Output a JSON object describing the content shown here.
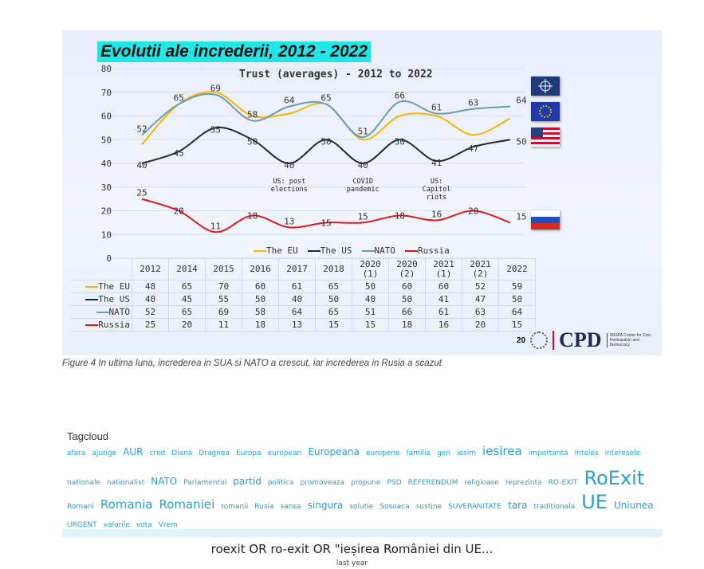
{
  "figure": {
    "title": "Evolutii ale increderii, 2012 - 2022",
    "caption": "Figure 4 In ultima luna, increderea in SUA si NATO a crescut, iar increderea in Rusia a scazut",
    "page_number": "20",
    "logo": "CPD",
    "logo_sub": "SNSPA Center for Civic Participation and Democracy"
  },
  "chart_data": {
    "type": "line",
    "title": "Trust (averages) - 2012 to 2022",
    "categories": [
      "2012",
      "2014",
      "2015",
      "2016",
      "2017",
      "2018",
      "2020 (1)",
      "2020 (2)",
      "2021 (1)",
      "2021 (2)",
      "2022"
    ],
    "ylim": [
      0,
      80
    ],
    "yticks": [
      "0",
      "10",
      "20",
      "30",
      "40",
      "50",
      "60",
      "70",
      "80"
    ],
    "legend_position": "bottom",
    "series": [
      {
        "name": "The EU",
        "color": "#f2b705",
        "values": [
          48,
          65,
          70,
          60,
          61,
          65,
          50,
          60,
          60,
          52,
          59
        ]
      },
      {
        "name": "The US",
        "color": "#1b2a33",
        "values": [
          40,
          45,
          55,
          50,
          40,
          50,
          40,
          50,
          41,
          47,
          50
        ]
      },
      {
        "name": "NATO",
        "color": "#6b9bb3",
        "values": [
          52,
          65,
          69,
          58,
          64,
          65,
          51,
          66,
          61,
          63,
          64
        ]
      },
      {
        "name": "Russia",
        "color": "#e0191e",
        "values": [
          25,
          20,
          11,
          18,
          13,
          15,
          15,
          18,
          16,
          20,
          15
        ]
      }
    ],
    "annotations": [
      {
        "text": "US: post elections",
        "x": "2017"
      },
      {
        "text": "COVID pandemic",
        "x": "2020 (1)"
      },
      {
        "text": "US: Capitol riots",
        "x": "2021 (1)"
      }
    ]
  },
  "tagcloud": {
    "heading": "Tagcloud",
    "tags": [
      {
        "t": "afara",
        "s": 1
      },
      {
        "t": "ajunge",
        "s": 1
      },
      {
        "t": "AUR",
        "s": 2
      },
      {
        "t": "cred",
        "s": 1
      },
      {
        "t": "Diana",
        "s": 1
      },
      {
        "t": "Dragnea",
        "s": 1
      },
      {
        "t": "Europa",
        "s": 1
      },
      {
        "t": "european",
        "s": 1
      },
      {
        "t": "Europeana",
        "s": 2
      },
      {
        "t": "europene",
        "s": 1
      },
      {
        "t": "familia",
        "s": 1
      },
      {
        "t": "gen",
        "s": 1
      },
      {
        "t": "iesim",
        "s": 1
      },
      {
        "t": "iesirea",
        "s": 3
      },
      {
        "t": "importanta",
        "s": 1
      },
      {
        "t": "inteles",
        "s": 1
      },
      {
        "t": "interesele",
        "s": 1
      },
      {
        "t": "nationale",
        "s": 1
      },
      {
        "t": "nationalist",
        "s": 1
      },
      {
        "t": "NATO",
        "s": 2
      },
      {
        "t": "Parlamentul",
        "s": 1
      },
      {
        "t": "partid",
        "s": 2
      },
      {
        "t": "politica",
        "s": 1
      },
      {
        "t": "promoveaza",
        "s": 1
      },
      {
        "t": "propune",
        "s": 1
      },
      {
        "t": "PSD",
        "s": 1
      },
      {
        "t": "REFERENDUM",
        "s": 1
      },
      {
        "t": "religioase",
        "s": 1
      },
      {
        "t": "reprezinta",
        "s": 1
      },
      {
        "t": "RO-EXIT",
        "s": 1
      },
      {
        "t": "RoExit",
        "s": 5
      },
      {
        "t": "Romani",
        "s": 1
      },
      {
        "t": "Romania",
        "s": 3
      },
      {
        "t": "Romaniei",
        "s": 3
      },
      {
        "t": "romanii",
        "s": 1
      },
      {
        "t": "Rusia",
        "s": 1
      },
      {
        "t": "sansa",
        "s": 1
      },
      {
        "t": "singura",
        "s": 2
      },
      {
        "t": "solutie",
        "s": 1
      },
      {
        "t": "Sosoaca",
        "s": 1
      },
      {
        "t": "sustine",
        "s": 1
      },
      {
        "t": "SUVERANITATE",
        "s": 1
      },
      {
        "t": "tara",
        "s": 2
      },
      {
        "t": "traditionala",
        "s": 1
      },
      {
        "t": "UE",
        "s": 5
      },
      {
        "t": "Uniunea",
        "s": 2
      },
      {
        "t": "URGENT",
        "s": 1
      },
      {
        "t": "valorile",
        "s": 1
      },
      {
        "t": "vota",
        "s": 1
      },
      {
        "t": "Vrem",
        "s": 1
      }
    ]
  },
  "query": {
    "text": "roexit OR ro-exit OR \"ieșirea României din UE...",
    "period": "last year"
  }
}
